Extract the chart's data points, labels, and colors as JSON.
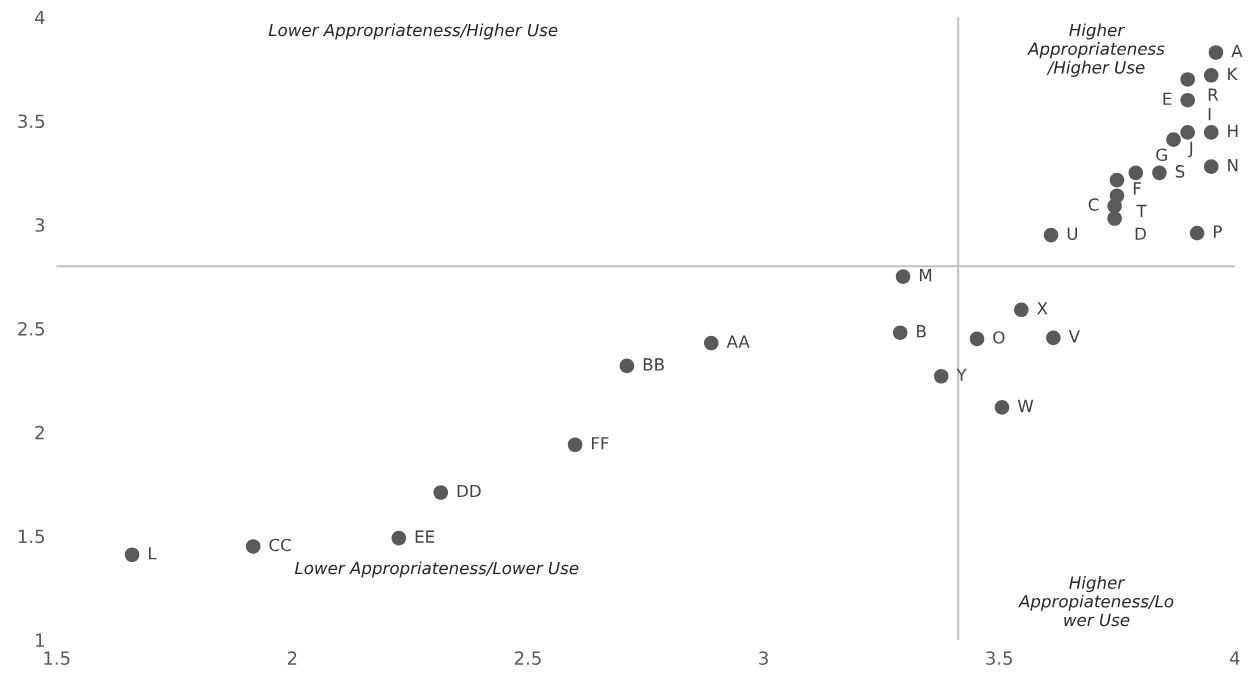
{
  "chart_data": {
    "type": "scatter",
    "marker": "circle",
    "grid": false,
    "x": [
      3.96,
      3.95,
      3.9,
      3.9,
      3.95,
      3.9,
      3.87,
      3.95,
      3.84,
      3.79,
      3.75,
      3.75,
      3.745,
      3.745,
      3.61,
      3.92,
      3.296,
      3.547,
      3.29,
      3.453,
      3.615,
      3.377,
      3.506,
      2.889,
      2.71,
      2.6,
      2.315,
      2.226,
      1.917,
      1.66
    ],
    "series": [
      {
        "color": "#595959",
        "values": [
          3.83,
          3.72,
          3.7,
          3.6,
          3.445,
          3.445,
          3.41,
          3.28,
          3.25,
          3.25,
          3.215,
          3.14,
          3.09,
          3.03,
          2.95,
          2.96,
          2.75,
          2.59,
          2.48,
          2.45,
          2.455,
          2.27,
          2.12,
          2.43,
          2.32,
          1.94,
          1.71,
          1.49,
          1.45,
          1.41
        ]
      }
    ],
    "xlim": [
      1.5,
      4
    ],
    "xticks": [
      1.5,
      2,
      2.5,
      3,
      3.5,
      4
    ],
    "ylim": [
      1,
      4
    ],
    "yticks": [
      1,
      1.5,
      2,
      2.5,
      3,
      3.5,
      4
    ],
    "ref_lines": [
      {
        "axis": "x",
        "value": 3.413,
        "color": "#bfbfbf"
      },
      {
        "axis": "y",
        "value": 2.8,
        "color": "#bfbfbf"
      }
    ],
    "annotations": [
      "Lower Appropriateness/Higher Use",
      "Higher\nAppropriateness\n/Higher Use",
      "Lower Appropriateness/Lower Use",
      "Higher\nAppropiateness/Lo\nwer Use",
      {
        "text": "A",
        "x": 3.96,
        "y": 3.83
      },
      {
        "text": "K",
        "x": 3.95,
        "y": 3.72
      },
      {
        "text": "R",
        "x": 3.9,
        "y": 3.7
      },
      {
        "text": "E",
        "x": 3.9,
        "y": 3.6
      },
      {
        "text": "H",
        "x": 3.95,
        "y": 3.445
      },
      {
        "text": "I",
        "x": 3.9,
        "y": 3.445
      },
      {
        "text": "J",
        "x": 3.87,
        "y": 3.41
      },
      {
        "text": "N",
        "x": 3.95,
        "y": 3.28
      },
      {
        "text": "S",
        "x": 3.84,
        "y": 3.25
      },
      {
        "text": "G",
        "x": 3.79,
        "y": 3.25
      },
      {
        "text": "F",
        "x": 3.75,
        "y": 3.215
      },
      {
        "text": "T",
        "x": 3.75,
        "y": 3.14
      },
      {
        "text": "C",
        "x": 3.745,
        "y": 3.09
      },
      {
        "text": "D",
        "x": 3.745,
        "y": 3.03
      },
      {
        "text": "U",
        "x": 3.61,
        "y": 2.95
      },
      {
        "text": "P",
        "x": 3.92,
        "y": 2.96
      },
      {
        "text": "M",
        "x": 3.296,
        "y": 2.75
      },
      {
        "text": "X",
        "x": 3.547,
        "y": 2.59
      },
      {
        "text": "B",
        "x": 3.29,
        "y": 2.48
      },
      {
        "text": "O",
        "x": 3.453,
        "y": 2.45
      },
      {
        "text": "V",
        "x": 3.615,
        "y": 2.455
      },
      {
        "text": "Y",
        "x": 3.377,
        "y": 2.27
      },
      {
        "text": "W",
        "x": 3.506,
        "y": 2.12
      },
      {
        "text": "AA",
        "x": 2.889,
        "y": 2.43
      },
      {
        "text": "BB",
        "x": 2.71,
        "y": 2.32
      },
      {
        "text": "FF",
        "x": 2.6,
        "y": 1.94
      },
      {
        "text": "DD",
        "x": 2.315,
        "y": 1.71
      },
      {
        "text": "EE",
        "x": 2.226,
        "y": 1.49
      },
      {
        "text": "CC",
        "x": 1.917,
        "y": 1.45
      },
      {
        "text": "L",
        "x": 1.66,
        "y": 1.41
      }
    ]
  }
}
